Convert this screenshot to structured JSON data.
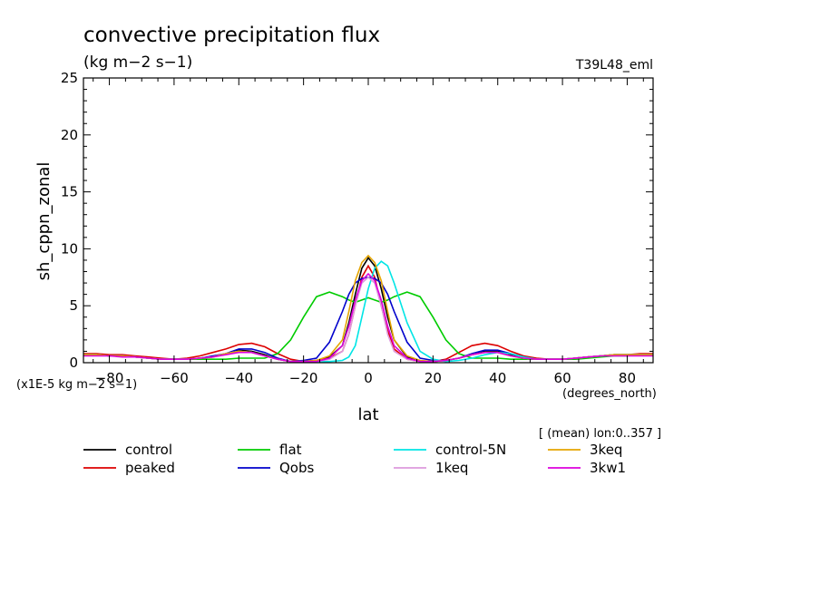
{
  "chart_data": {
    "type": "line",
    "title": "convective precipitation flux",
    "units_label": "(kg m−2 s−1)",
    "experiment_tag": "T39L48_eml",
    "ylabel": "sh_cppn_zonal",
    "xlabel": "lat",
    "x_units": "(degrees_north)",
    "y_scale_note": "(x1E-5 kg m−2 s−1)",
    "averaging_note": "[ (mean) lon:0..357 ]",
    "xlim": [
      -88,
      88
    ],
    "ylim": [
      0,
      25
    ],
    "x_ticks": [
      -80,
      -60,
      -40,
      -20,
      0,
      20,
      40,
      60,
      80
    ],
    "x_tick_labels": [
      "−80",
      "−60",
      "−40",
      "−20",
      "0",
      "20",
      "40",
      "60",
      "80"
    ],
    "y_ticks": [
      0,
      5,
      10,
      15,
      20,
      25
    ],
    "y_tick_labels": [
      "0",
      "5",
      "10",
      "15",
      "20",
      "25"
    ],
    "x": [
      -88,
      -84,
      -80,
      -76,
      -72,
      -68,
      -64,
      -60,
      -56,
      -52,
      -48,
      -44,
      -40,
      -36,
      -32,
      -28,
      -24,
      -20,
      -16,
      -12,
      -8,
      -6,
      -4,
      -2,
      0,
      2,
      4,
      6,
      8,
      12,
      16,
      20,
      24,
      28,
      32,
      36,
      40,
      44,
      48,
      52,
      56,
      60,
      64,
      68,
      72,
      76,
      80,
      84,
      88
    ],
    "series": [
      {
        "name": "control",
        "color": "#000000",
        "values": [
          0.7,
          0.7,
          0.6,
          0.6,
          0.5,
          0.4,
          0.3,
          0.3,
          0.3,
          0.4,
          0.5,
          0.8,
          1.1,
          1.0,
          0.7,
          0.3,
          0.1,
          0.1,
          0.2,
          0.5,
          1.5,
          3.5,
          6.0,
          8.3,
          9.2,
          8.5,
          6.5,
          4.0,
          2.0,
          0.5,
          0.1,
          0.1,
          0.2,
          0.4,
          0.7,
          1.0,
          1.0,
          0.7,
          0.4,
          0.3,
          0.3,
          0.3,
          0.4,
          0.5,
          0.6,
          0.7,
          0.7,
          0.7,
          0.7
        ]
      },
      {
        "name": "peaked",
        "color": "#dd0000",
        "values": [
          0.8,
          0.8,
          0.7,
          0.7,
          0.6,
          0.5,
          0.4,
          0.3,
          0.4,
          0.6,
          0.9,
          1.2,
          1.6,
          1.7,
          1.4,
          0.8,
          0.3,
          0.1,
          0.2,
          0.4,
          1.0,
          2.5,
          5.0,
          7.5,
          8.5,
          7.5,
          5.0,
          2.8,
          1.2,
          0.3,
          0.1,
          0.1,
          0.3,
          0.9,
          1.5,
          1.7,
          1.5,
          1.0,
          0.6,
          0.4,
          0.3,
          0.3,
          0.4,
          0.5,
          0.6,
          0.7,
          0.7,
          0.8,
          0.8
        ]
      },
      {
        "name": "flat",
        "color": "#00cc00",
        "values": [
          0.7,
          0.7,
          0.6,
          0.6,
          0.5,
          0.4,
          0.3,
          0.3,
          0.3,
          0.3,
          0.3,
          0.3,
          0.4,
          0.4,
          0.4,
          0.8,
          2.0,
          4.0,
          5.8,
          6.2,
          5.8,
          5.5,
          5.3,
          5.5,
          5.7,
          5.5,
          5.3,
          5.5,
          5.8,
          6.2,
          5.8,
          4.0,
          2.0,
          0.8,
          0.4,
          0.4,
          0.4,
          0.3,
          0.3,
          0.3,
          0.3,
          0.3,
          0.3,
          0.4,
          0.5,
          0.6,
          0.6,
          0.7,
          0.7
        ]
      },
      {
        "name": "Qobs",
        "color": "#0000cc",
        "values": [
          0.7,
          0.7,
          0.6,
          0.6,
          0.5,
          0.4,
          0.3,
          0.3,
          0.3,
          0.4,
          0.6,
          0.8,
          1.2,
          1.2,
          0.9,
          0.4,
          0.1,
          0.2,
          0.4,
          1.8,
          4.5,
          6.0,
          7.0,
          7.4,
          7.5,
          7.4,
          7.0,
          6.0,
          4.5,
          1.8,
          0.4,
          0.2,
          0.2,
          0.4,
          0.8,
          1.1,
          1.1,
          0.8,
          0.5,
          0.3,
          0.3,
          0.3,
          0.4,
          0.5,
          0.6,
          0.7,
          0.7,
          0.7,
          0.7
        ]
      },
      {
        "name": "control-5N",
        "color": "#00e5e5",
        "values": [
          0.7,
          0.7,
          0.6,
          0.6,
          0.5,
          0.4,
          0.3,
          0.3,
          0.3,
          0.4,
          0.5,
          0.8,
          1.0,
          0.9,
          0.6,
          0.3,
          0.1,
          0.1,
          0.1,
          0.1,
          0.2,
          0.5,
          1.5,
          4.0,
          6.5,
          8.3,
          8.9,
          8.5,
          7.0,
          3.5,
          1.0,
          0.3,
          0.1,
          0.2,
          0.4,
          0.7,
          0.9,
          0.8,
          0.5,
          0.3,
          0.3,
          0.3,
          0.4,
          0.5,
          0.6,
          0.7,
          0.7,
          0.7,
          0.7
        ]
      },
      {
        "name": "1keq",
        "color": "#dd99dd",
        "values": [
          0.7,
          0.7,
          0.6,
          0.6,
          0.5,
          0.4,
          0.3,
          0.3,
          0.3,
          0.4,
          0.5,
          0.8,
          1.0,
          0.9,
          0.6,
          0.3,
          0.1,
          0.1,
          0.1,
          0.3,
          1.0,
          2.5,
          5.0,
          7.0,
          7.5,
          7.0,
          5.0,
          2.5,
          1.0,
          0.3,
          0.1,
          0.1,
          0.2,
          0.4,
          0.7,
          0.9,
          0.9,
          0.6,
          0.4,
          0.3,
          0.3,
          0.3,
          0.4,
          0.5,
          0.6,
          0.7,
          0.7,
          0.7,
          0.7
        ]
      },
      {
        "name": "3keq",
        "color": "#e5a500",
        "values": [
          0.7,
          0.7,
          0.6,
          0.6,
          0.5,
          0.4,
          0.3,
          0.3,
          0.3,
          0.4,
          0.5,
          0.8,
          1.0,
          0.9,
          0.6,
          0.3,
          0.1,
          0.1,
          0.2,
          0.6,
          2.0,
          4.5,
          7.2,
          8.8,
          9.4,
          8.8,
          7.2,
          4.5,
          2.0,
          0.6,
          0.2,
          0.1,
          0.2,
          0.4,
          0.7,
          0.9,
          0.9,
          0.6,
          0.4,
          0.3,
          0.3,
          0.3,
          0.4,
          0.5,
          0.6,
          0.7,
          0.7,
          0.7,
          0.7
        ]
      },
      {
        "name": "3kw1",
        "color": "#dd00dd",
        "values": [
          0.6,
          0.6,
          0.6,
          0.5,
          0.5,
          0.4,
          0.3,
          0.3,
          0.3,
          0.4,
          0.5,
          0.7,
          0.9,
          0.9,
          0.6,
          0.3,
          0.1,
          0.1,
          0.1,
          0.4,
          1.5,
          3.2,
          5.5,
          7.2,
          7.8,
          7.2,
          5.5,
          3.2,
          1.5,
          0.4,
          0.1,
          0.1,
          0.2,
          0.4,
          0.7,
          0.9,
          0.9,
          0.6,
          0.4,
          0.3,
          0.3,
          0.3,
          0.4,
          0.5,
          0.6,
          0.6,
          0.6,
          0.6,
          0.6
        ]
      }
    ],
    "legend_order": [
      "control",
      "flat",
      "control-5N",
      "3keq",
      "peaked",
      "Qobs",
      "1keq",
      "3kw1"
    ],
    "legend_position": "bottom",
    "grid": false
  }
}
